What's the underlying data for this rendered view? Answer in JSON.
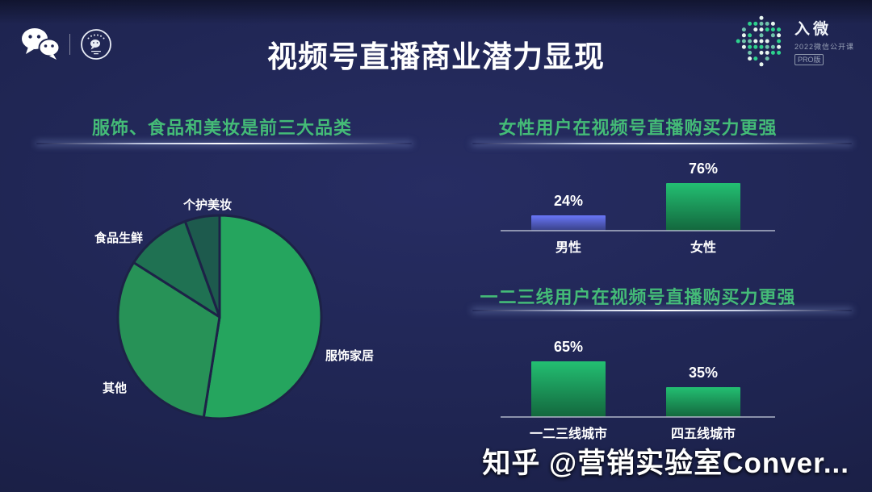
{
  "header": {
    "title": "视频号直播商业潜力显现",
    "brand_icons": {
      "wechat": "wechat-logo",
      "open_class_badge": "wechat-open-class-badge"
    },
    "event": {
      "name": "入微",
      "subtitle": "2022微信公开课",
      "badge": "PRO版",
      "dot_colors": [
        "#2dd28d",
        "#2a8f75",
        "#e8f6ef",
        "#1d5f54",
        "#6fc3ab",
        "#2b5c8f"
      ]
    }
  },
  "sections": {
    "categories": {
      "heading": "服饰、食品和美妆是前三大品类"
    },
    "gender": {
      "heading": "女性用户在视频号直播购买力更强"
    },
    "city_tier": {
      "heading": "一二三线用户在视频号直播购买力更强"
    }
  },
  "watermark": {
    "text": "知乎 @营销实验室Conver..."
  },
  "colors": {
    "background": "#1e2450",
    "heading_green": "#44bb77",
    "divider_glow": "#ffffff",
    "bar_blue": "#5b67d8",
    "bar_green": "#1ea663",
    "pie_stroke": "#1d2247",
    "text_white": "#ffffff"
  },
  "chart_data": [
    {
      "type": "pie",
      "title": "服饰、食品和美妆是前三大品类",
      "labels": [
        "服饰家居",
        "其他",
        "食品生鲜",
        "个护美妆"
      ],
      "values": [
        52.5,
        31.5,
        10.5,
        5.5
      ],
      "colors": [
        "#25a55e",
        "#279257",
        "#1f7152",
        "#1d5a4d"
      ],
      "start_angle_deg": 0,
      "direction": "clockwise",
      "label_position": "outside",
      "legend": "none"
    },
    {
      "type": "bar",
      "title": "女性用户在视频号直播购买力更强",
      "categories": [
        "男性",
        "女性"
      ],
      "values": [
        24,
        76
      ],
      "unit": "%",
      "bar_colors": [
        "#5b67d8",
        "#1ea663"
      ],
      "value_labels": "above-bars",
      "ylim": [
        0,
        100
      ],
      "grid": false
    },
    {
      "type": "bar",
      "title": "一二三线用户在视频号直播购买力更强",
      "categories": [
        "一二三线城市",
        "四五线城市"
      ],
      "values": [
        65,
        35
      ],
      "unit": "%",
      "bar_colors": [
        "#1ea663",
        "#1ea663"
      ],
      "value_labels": "above-bars",
      "ylim": [
        0,
        100
      ],
      "grid": false
    }
  ]
}
